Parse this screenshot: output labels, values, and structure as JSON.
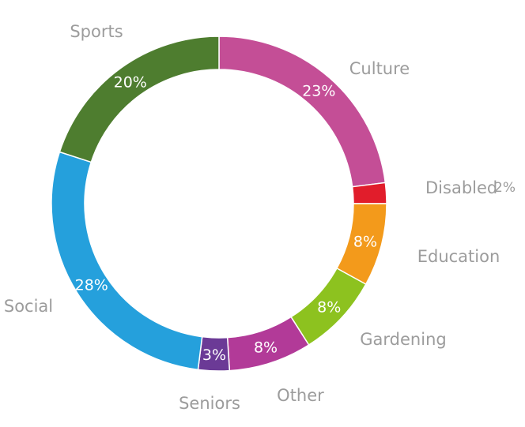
{
  "chart_data": {
    "type": "pie",
    "title": "",
    "legend": "none",
    "start_angle_deg": 0,
    "direction": "clockwise",
    "slices": [
      {
        "label": "Culture",
        "value": 23,
        "value_label": "23%",
        "color": "#c44e96",
        "value_inside": true
      },
      {
        "label": "Disabled",
        "value": 2,
        "value_label": "2%",
        "color": "#e11d2b",
        "value_inside": false
      },
      {
        "label": "Education",
        "value": 8,
        "value_label": "8%",
        "color": "#f39a1b",
        "value_inside": true
      },
      {
        "label": "Gardening",
        "value": 8,
        "value_label": "8%",
        "color": "#8dc21f",
        "value_inside": true
      },
      {
        "label": "Other",
        "value": 8,
        "value_label": "8%",
        "color": "#b23a98",
        "value_inside": true
      },
      {
        "label": "Seniors",
        "value": 3,
        "value_label": "3%",
        "color": "#6b3a96",
        "value_inside": true
      },
      {
        "label": "Social",
        "value": 28,
        "value_label": "28%",
        "color": "#25a0dc",
        "value_inside": true
      },
      {
        "label": "Sports",
        "value": 20,
        "value_label": "20%",
        "color": "#4e7d2f",
        "value_inside": true
      }
    ]
  }
}
